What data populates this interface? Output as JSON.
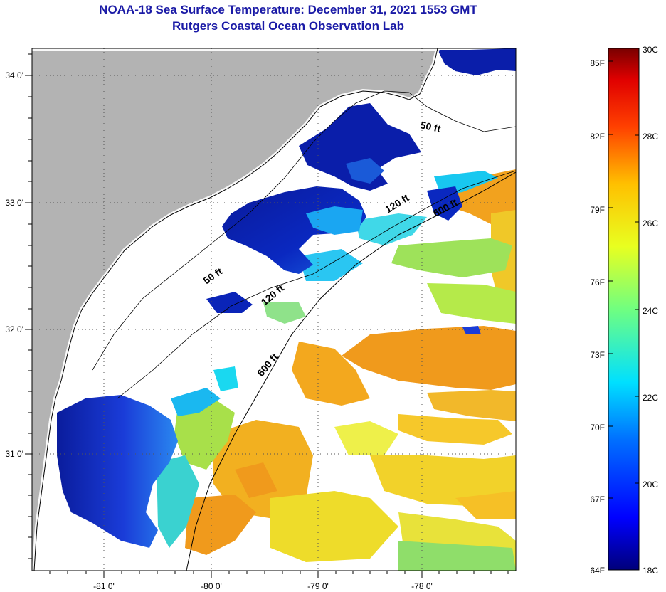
{
  "title": "NOAA-18 Sea Surface Temperature:  December 31, 2021 1553 GMT",
  "subtitle": "Rutgers Coastal Ocean Observation Lab",
  "map": {
    "lon_ticks": [
      {
        "value": -81,
        "label": "-81 0'"
      },
      {
        "value": -80,
        "label": "-80 0'"
      },
      {
        "value": -79,
        "label": "-79 0'"
      },
      {
        "value": -78,
        "label": "-78 0'"
      }
    ],
    "lat_ticks": [
      {
        "value": 34,
        "label": "34 0'"
      },
      {
        "value": 33,
        "label": "33 0'"
      },
      {
        "value": 32,
        "label": "32 0'"
      },
      {
        "value": 31,
        "label": "31 0'"
      }
    ],
    "contours": [
      {
        "label": "50 ft",
        "depth_ft": 50
      },
      {
        "label": "50 ft",
        "depth_ft": 50
      },
      {
        "label": "120 ft",
        "depth_ft": 120
      },
      {
        "label": "120 ft",
        "depth_ft": 120
      },
      {
        "label": "600 ft",
        "depth_ft": 600
      },
      {
        "label": "600 ft",
        "depth_ft": 600
      }
    ],
    "colors": {
      "land": "#b3b3b3",
      "cloud": "#ffffff",
      "cold": "#0a1eaa",
      "cool": "#18d6f0",
      "mild": "#9be24a",
      "warm": "#f2c81a",
      "hot": "#f09a1c"
    }
  },
  "colorbar": {
    "fahrenheit_labels": [
      "85F",
      "82F",
      "79F",
      "76F",
      "73F",
      "70F",
      "67F",
      "64F"
    ],
    "celsius_labels": [
      "30C",
      "28C",
      "26C",
      "24C",
      "22C",
      "20C",
      "18C"
    ],
    "min_f": 64,
    "max_f": 86,
    "min_c": 18,
    "max_c": 30
  }
}
